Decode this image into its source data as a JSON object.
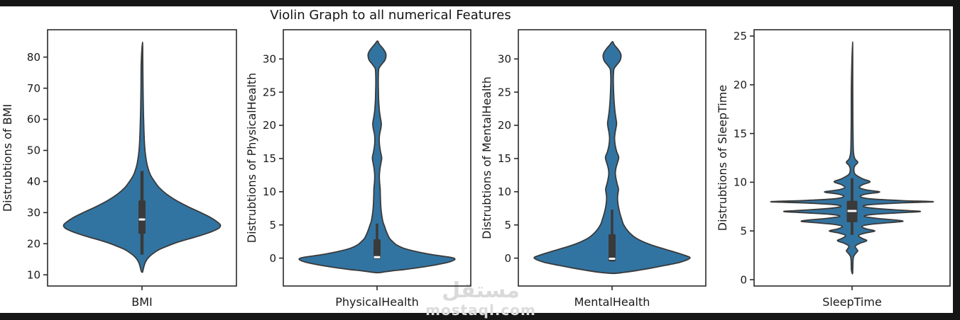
{
  "chart_data": {
    "type": "violin",
    "title": "Violin Graph to all numerical Features",
    "legend": "none",
    "grid": false,
    "colors": {
      "violin_fill": "#3274a1",
      "violin_edge": "#3a3a3a",
      "box_fill": "#3a3a3a",
      "median": "#ffffff",
      "axis": "#2a2a2a",
      "text": "#1a1a1a"
    },
    "plots": [
      {
        "xlabel": "BMI",
        "ylabel": "Distrubtions of BMI",
        "yticks": [
          10,
          20,
          30,
          40,
          50,
          60,
          70,
          80
        ],
        "ylim": [
          6.4,
          88.8
        ],
        "box": {
          "median": 27.8,
          "q1": 23.2,
          "q3": 33.9,
          "whisker_low": 16.5,
          "whisker_high": 43.4
        },
        "profile": [
          [
            84.8,
            0.006
          ],
          [
            78,
            0.01
          ],
          [
            70,
            0.013
          ],
          [
            62,
            0.018
          ],
          [
            56,
            0.025
          ],
          [
            52,
            0.032
          ],
          [
            49,
            0.042
          ],
          [
            46,
            0.06
          ],
          [
            44,
            0.08
          ],
          [
            42,
            0.11
          ],
          [
            40,
            0.16
          ],
          [
            38,
            0.22
          ],
          [
            36,
            0.31
          ],
          [
            34,
            0.43
          ],
          [
            32,
            0.58
          ],
          [
            30,
            0.75
          ],
          [
            28.5,
            0.87
          ],
          [
            27,
            0.96
          ],
          [
            26,
            1.0
          ],
          [
            25,
            0.98
          ],
          [
            24,
            0.9
          ],
          [
            23,
            0.79
          ],
          [
            22,
            0.66
          ],
          [
            21,
            0.52
          ],
          [
            20,
            0.4
          ],
          [
            19,
            0.3
          ],
          [
            18,
            0.21
          ],
          [
            17,
            0.15
          ],
          [
            16,
            0.1
          ],
          [
            15,
            0.065
          ],
          [
            14,
            0.042
          ],
          [
            13,
            0.028
          ],
          [
            12,
            0.018
          ],
          [
            11.2,
            0.01
          ],
          [
            10.8,
            0.005
          ]
        ]
      },
      {
        "xlabel": "PhysicalHealth",
        "ylabel": "Distrubtions of PhysicalHealth",
        "yticks": [
          0,
          5,
          10,
          15,
          20,
          25,
          30
        ],
        "ylim": [
          -4.2,
          34.4
        ],
        "box": {
          "median": 0.15,
          "q1": -0.1,
          "q3": 2.85,
          "whisker_low": -0.1,
          "whisker_high": 5.2
        },
        "profile": [
          [
            32.7,
            0.006
          ],
          [
            32.2,
            0.03
          ],
          [
            31.5,
            0.08
          ],
          [
            30.9,
            0.11
          ],
          [
            30.4,
            0.115
          ],
          [
            29.8,
            0.1
          ],
          [
            29.2,
            0.06
          ],
          [
            28.6,
            0.025
          ],
          [
            28,
            0.018
          ],
          [
            27,
            0.016
          ],
          [
            26,
            0.016
          ],
          [
            25,
            0.018
          ],
          [
            24,
            0.02
          ],
          [
            23,
            0.025
          ],
          [
            22,
            0.032
          ],
          [
            21,
            0.045
          ],
          [
            20.3,
            0.055
          ],
          [
            19.6,
            0.05
          ],
          [
            18.8,
            0.035
          ],
          [
            18,
            0.028
          ],
          [
            17,
            0.032
          ],
          [
            16,
            0.045
          ],
          [
            15.1,
            0.06
          ],
          [
            14.3,
            0.05
          ],
          [
            13.5,
            0.038
          ],
          [
            12.5,
            0.03
          ],
          [
            11.5,
            0.032
          ],
          [
            10.5,
            0.04
          ],
          [
            9.5,
            0.042
          ],
          [
            8.5,
            0.045
          ],
          [
            7.5,
            0.05
          ],
          [
            6.5,
            0.06
          ],
          [
            5.5,
            0.075
          ],
          [
            5,
            0.09
          ],
          [
            4,
            0.12
          ],
          [
            3,
            0.16
          ],
          [
            2.5,
            0.2
          ],
          [
            2,
            0.25
          ],
          [
            1.5,
            0.34
          ],
          [
            1,
            0.5
          ],
          [
            0.5,
            0.72
          ],
          [
            0.1,
            0.95
          ],
          [
            -0.2,
            1.0
          ],
          [
            -0.6,
            0.92
          ],
          [
            -1,
            0.76
          ],
          [
            -1.4,
            0.55
          ],
          [
            -1.7,
            0.36
          ],
          [
            -1.9,
            0.2
          ],
          [
            -2.1,
            0.08
          ],
          [
            -2.2,
            0.01
          ]
        ]
      },
      {
        "xlabel": "MentalHealth",
        "ylabel": "Distrubtions of MentalHealth",
        "yticks": [
          0,
          5,
          10,
          15,
          20,
          25,
          30
        ],
        "ylim": [
          -4.2,
          34.4
        ],
        "box": {
          "median": -0.1,
          "q1": -0.5,
          "q3": 3.6,
          "whisker_low": -0.5,
          "whisker_high": 7.3
        },
        "profile": [
          [
            32.6,
            0.006
          ],
          [
            32.1,
            0.03
          ],
          [
            31.4,
            0.08
          ],
          [
            30.8,
            0.11
          ],
          [
            30.3,
            0.115
          ],
          [
            29.7,
            0.1
          ],
          [
            29.1,
            0.06
          ],
          [
            28.5,
            0.025
          ],
          [
            27.8,
            0.018
          ],
          [
            27,
            0.016
          ],
          [
            26,
            0.017
          ],
          [
            25,
            0.02
          ],
          [
            24,
            0.024
          ],
          [
            23,
            0.03
          ],
          [
            22,
            0.038
          ],
          [
            21,
            0.05
          ],
          [
            20.3,
            0.058
          ],
          [
            19.6,
            0.05
          ],
          [
            18.8,
            0.038
          ],
          [
            18,
            0.032
          ],
          [
            17,
            0.04
          ],
          [
            16,
            0.06
          ],
          [
            15.2,
            0.085
          ],
          [
            14.4,
            0.07
          ],
          [
            13.6,
            0.05
          ],
          [
            12.8,
            0.042
          ],
          [
            12,
            0.05
          ],
          [
            11.2,
            0.065
          ],
          [
            10.4,
            0.082
          ],
          [
            9.7,
            0.075
          ],
          [
            9,
            0.07
          ],
          [
            8,
            0.078
          ],
          [
            7,
            0.095
          ],
          [
            6,
            0.12
          ],
          [
            5,
            0.15
          ],
          [
            4,
            0.21
          ],
          [
            3,
            0.31
          ],
          [
            2,
            0.5
          ],
          [
            1,
            0.78
          ],
          [
            0.4,
            0.94
          ],
          [
            0,
            1.0
          ],
          [
            -0.6,
            0.88
          ],
          [
            -1.1,
            0.68
          ],
          [
            -1.5,
            0.5
          ],
          [
            -1.9,
            0.3
          ],
          [
            -2.15,
            0.15
          ],
          [
            -2.3,
            0.01
          ]
        ]
      },
      {
        "xlabel": "SleepTime",
        "ylabel": "Distrubtions of SleepTime",
        "yticks": [
          0,
          5,
          10,
          15,
          20,
          25
        ],
        "ylim": [
          -0.65,
          25.65
        ],
        "box": {
          "median": 7.05,
          "q1": 5.9,
          "q3": 8.1,
          "whisker_low": 4.6,
          "whisker_high": 10.4
        },
        "profile": [
          [
            24.4,
            0.006
          ],
          [
            20,
            0.008
          ],
          [
            16,
            0.01
          ],
          [
            14,
            0.013
          ],
          [
            13,
            0.018
          ],
          [
            12.4,
            0.035
          ],
          [
            12.05,
            0.07
          ],
          [
            11.7,
            0.035
          ],
          [
            11.3,
            0.022
          ],
          [
            10.8,
            0.04
          ],
          [
            10.35,
            0.13
          ],
          [
            10.05,
            0.22
          ],
          [
            9.75,
            0.13
          ],
          [
            9.45,
            0.09
          ],
          [
            9.2,
            0.18
          ],
          [
            9.0,
            0.34
          ],
          [
            8.8,
            0.18
          ],
          [
            8.55,
            0.1
          ],
          [
            8.3,
            0.22
          ],
          [
            8.12,
            0.6
          ],
          [
            8.0,
            1.0
          ],
          [
            7.88,
            0.6
          ],
          [
            7.7,
            0.22
          ],
          [
            7.5,
            0.14
          ],
          [
            7.3,
            0.3
          ],
          [
            7.12,
            0.62
          ],
          [
            7.0,
            0.84
          ],
          [
            6.88,
            0.62
          ],
          [
            6.7,
            0.26
          ],
          [
            6.5,
            0.15
          ],
          [
            6.3,
            0.3
          ],
          [
            6.1,
            0.56
          ],
          [
            5.98,
            0.62
          ],
          [
            5.85,
            0.45
          ],
          [
            5.65,
            0.2
          ],
          [
            5.45,
            0.12
          ],
          [
            5.2,
            0.18
          ],
          [
            5.0,
            0.28
          ],
          [
            4.8,
            0.17
          ],
          [
            4.55,
            0.08
          ],
          [
            4.25,
            0.12
          ],
          [
            4.0,
            0.18
          ],
          [
            3.75,
            0.1
          ],
          [
            3.45,
            0.04
          ],
          [
            3.15,
            0.055
          ],
          [
            2.95,
            0.07
          ],
          [
            2.7,
            0.045
          ],
          [
            2.4,
            0.02
          ],
          [
            2.0,
            0.012
          ],
          [
            1.5,
            0.01
          ],
          [
            1.0,
            0.008
          ],
          [
            0.6,
            0.005
          ]
        ]
      }
    ]
  },
  "watermark": {
    "arabic": "مستقل",
    "domain": "mostaql.com"
  }
}
